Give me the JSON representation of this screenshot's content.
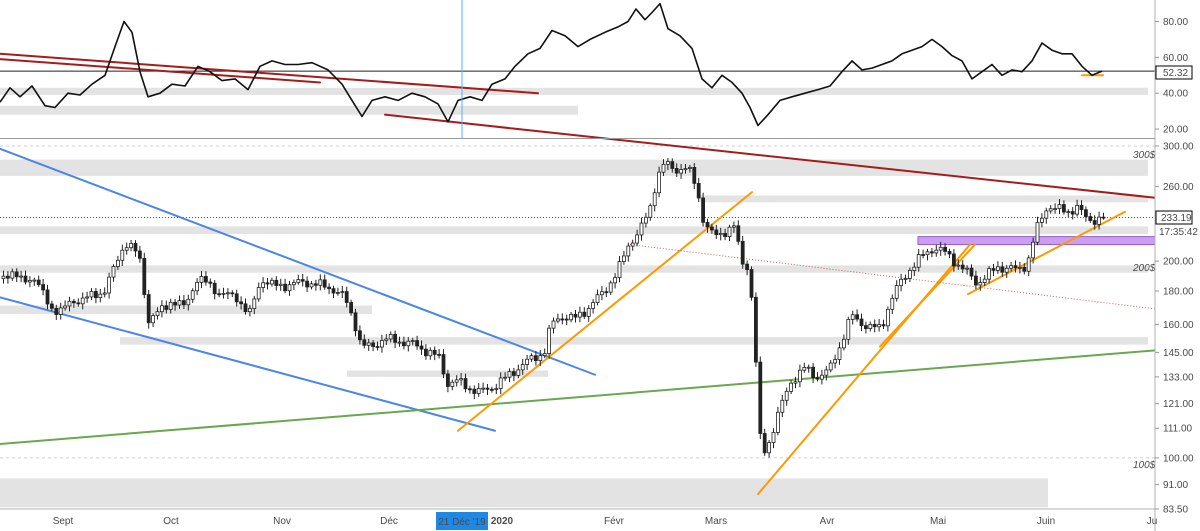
{
  "chart_data": {
    "type": "candlestick",
    "title": "",
    "price_axis": {
      "scale": "log",
      "ticks": [
        "300.00",
        "260.00",
        "233.19",
        "200.00",
        "180.00",
        "160.00",
        "145.00",
        "133.00",
        "121.00",
        "111.00",
        "100.00",
        "91.00",
        "83.50"
      ],
      "range": [
        83.5,
        300
      ]
    },
    "indicator_axis": {
      "ticks": [
        "80.00",
        "60.00",
        "40.00",
        "20.00"
      ],
      "range": [
        15,
        92
      ]
    },
    "x_ticks": [
      "Sept",
      "Oct",
      "Nov",
      "Déc",
      "2020",
      "Févr",
      "Mars",
      "Avr",
      "Mai",
      "Juin",
      "Ju"
    ],
    "cursor_date": "21 Déc '19",
    "last_price": {
      "value": 233.19,
      "label": "233.19",
      "countdown": "17:35:42"
    },
    "indicator_last": {
      "value": 52.32,
      "label": "52.32"
    },
    "level_labels": [
      {
        "text": "300$",
        "value": 300
      },
      {
        "text": "200$",
        "value": 200
      },
      {
        "text": "100$",
        "value": 100
      }
    ],
    "price_series": [
      {
        "x": 0,
        "y": 188
      },
      {
        "x": 12,
        "y": 193
      },
      {
        "x": 22,
        "y": 186
      },
      {
        "x": 35,
        "y": 189
      },
      {
        "x": 50,
        "y": 170
      },
      {
        "x": 62,
        "y": 168
      },
      {
        "x": 75,
        "y": 174
      },
      {
        "x": 90,
        "y": 176
      },
      {
        "x": 105,
        "y": 180
      },
      {
        "x": 115,
        "y": 195
      },
      {
        "x": 126,
        "y": 214
      },
      {
        "x": 135,
        "y": 208
      },
      {
        "x": 142,
        "y": 198
      },
      {
        "x": 148,
        "y": 162
      },
      {
        "x": 160,
        "y": 167
      },
      {
        "x": 172,
        "y": 174
      },
      {
        "x": 185,
        "y": 170
      },
      {
        "x": 198,
        "y": 188
      },
      {
        "x": 210,
        "y": 184
      },
      {
        "x": 222,
        "y": 178
      },
      {
        "x": 238,
        "y": 176
      },
      {
        "x": 250,
        "y": 165
      },
      {
        "x": 262,
        "y": 188
      },
      {
        "x": 275,
        "y": 183
      },
      {
        "x": 290,
        "y": 184
      },
      {
        "x": 305,
        "y": 186
      },
      {
        "x": 318,
        "y": 184
      },
      {
        "x": 332,
        "y": 182
      },
      {
        "x": 345,
        "y": 176
      },
      {
        "x": 355,
        "y": 162
      },
      {
        "x": 362,
        "y": 148
      },
      {
        "x": 372,
        "y": 148
      },
      {
        "x": 385,
        "y": 152
      },
      {
        "x": 400,
        "y": 151
      },
      {
        "x": 415,
        "y": 149
      },
      {
        "x": 430,
        "y": 145
      },
      {
        "x": 440,
        "y": 142
      },
      {
        "x": 448,
        "y": 130
      },
      {
        "x": 458,
        "y": 131
      },
      {
        "x": 470,
        "y": 128
      },
      {
        "x": 480,
        "y": 126
      },
      {
        "x": 492,
        "y": 128
      },
      {
        "x": 505,
        "y": 132
      },
      {
        "x": 518,
        "y": 137
      },
      {
        "x": 530,
        "y": 141
      },
      {
        "x": 545,
        "y": 145
      },
      {
        "x": 552,
        "y": 160
      },
      {
        "x": 562,
        "y": 165
      },
      {
        "x": 575,
        "y": 163
      },
      {
        "x": 590,
        "y": 170
      },
      {
        "x": 605,
        "y": 180
      },
      {
        "x": 618,
        "y": 192
      },
      {
        "x": 630,
        "y": 213
      },
      {
        "x": 640,
        "y": 222
      },
      {
        "x": 650,
        "y": 238
      },
      {
        "x": 658,
        "y": 270
      },
      {
        "x": 665,
        "y": 282
      },
      {
        "x": 675,
        "y": 276
      },
      {
        "x": 688,
        "y": 278
      },
      {
        "x": 697,
        "y": 260
      },
      {
        "x": 705,
        "y": 228
      },
      {
        "x": 715,
        "y": 218
      },
      {
        "x": 725,
        "y": 222
      },
      {
        "x": 735,
        "y": 226
      },
      {
        "x": 742,
        "y": 200
      },
      {
        "x": 750,
        "y": 195
      },
      {
        "x": 758,
        "y": 128
      },
      {
        "x": 762,
        "y": 100
      },
      {
        "x": 770,
        "y": 106
      },
      {
        "x": 780,
        "y": 118
      },
      {
        "x": 792,
        "y": 131
      },
      {
        "x": 805,
        "y": 137
      },
      {
        "x": 818,
        "y": 133
      },
      {
        "x": 830,
        "y": 136
      },
      {
        "x": 842,
        "y": 150
      },
      {
        "x": 852,
        "y": 165
      },
      {
        "x": 862,
        "y": 161
      },
      {
        "x": 872,
        "y": 158
      },
      {
        "x": 882,
        "y": 158
      },
      {
        "x": 890,
        "y": 172
      },
      {
        "x": 898,
        "y": 182
      },
      {
        "x": 910,
        "y": 194
      },
      {
        "x": 922,
        "y": 203
      },
      {
        "x": 935,
        "y": 210
      },
      {
        "x": 948,
        "y": 205
      },
      {
        "x": 958,
        "y": 198
      },
      {
        "x": 968,
        "y": 192
      },
      {
        "x": 978,
        "y": 185
      },
      {
        "x": 988,
        "y": 190
      },
      {
        "x": 998,
        "y": 196
      },
      {
        "x": 1008,
        "y": 195
      },
      {
        "x": 1018,
        "y": 194
      },
      {
        "x": 1028,
        "y": 198
      },
      {
        "x": 1038,
        "y": 225
      },
      {
        "x": 1048,
        "y": 243
      },
      {
        "x": 1058,
        "y": 240
      },
      {
        "x": 1068,
        "y": 238
      },
      {
        "x": 1078,
        "y": 242
      },
      {
        "x": 1088,
        "y": 231
      },
      {
        "x": 1098,
        "y": 232
      },
      {
        "x": 1106,
        "y": 233.19
      }
    ],
    "indicator_series": [
      {
        "x": 0,
        "y": 35
      },
      {
        "x": 10,
        "y": 43
      },
      {
        "x": 20,
        "y": 38
      },
      {
        "x": 32,
        "y": 44
      },
      {
        "x": 45,
        "y": 33
      },
      {
        "x": 55,
        "y": 32
      },
      {
        "x": 68,
        "y": 40
      },
      {
        "x": 80,
        "y": 39
      },
      {
        "x": 92,
        "y": 45
      },
      {
        "x": 105,
        "y": 50
      },
      {
        "x": 115,
        "y": 66
      },
      {
        "x": 124,
        "y": 80
      },
      {
        "x": 132,
        "y": 74
      },
      {
        "x": 140,
        "y": 52
      },
      {
        "x": 148,
        "y": 38
      },
      {
        "x": 160,
        "y": 40
      },
      {
        "x": 172,
        "y": 45
      },
      {
        "x": 185,
        "y": 44
      },
      {
        "x": 198,
        "y": 55
      },
      {
        "x": 210,
        "y": 52
      },
      {
        "x": 222,
        "y": 47
      },
      {
        "x": 235,
        "y": 48
      },
      {
        "x": 248,
        "y": 42
      },
      {
        "x": 260,
        "y": 55
      },
      {
        "x": 272,
        "y": 58
      },
      {
        "x": 285,
        "y": 56
      },
      {
        "x": 298,
        "y": 56
      },
      {
        "x": 312,
        "y": 57
      },
      {
        "x": 328,
        "y": 53
      },
      {
        "x": 342,
        "y": 45
      },
      {
        "x": 352,
        "y": 36
      },
      {
        "x": 362,
        "y": 27
      },
      {
        "x": 372,
        "y": 36
      },
      {
        "x": 385,
        "y": 38
      },
      {
        "x": 398,
        "y": 36
      },
      {
        "x": 412,
        "y": 40
      },
      {
        "x": 425,
        "y": 38
      },
      {
        "x": 438,
        "y": 34
      },
      {
        "x": 448,
        "y": 24
      },
      {
        "x": 458,
        "y": 36
      },
      {
        "x": 470,
        "y": 38
      },
      {
        "x": 482,
        "y": 36
      },
      {
        "x": 492,
        "y": 45
      },
      {
        "x": 505,
        "y": 48
      },
      {
        "x": 515,
        "y": 55
      },
      {
        "x": 528,
        "y": 62
      },
      {
        "x": 540,
        "y": 65
      },
      {
        "x": 552,
        "y": 75
      },
      {
        "x": 565,
        "y": 72
      },
      {
        "x": 578,
        "y": 66
      },
      {
        "x": 590,
        "y": 70
      },
      {
        "x": 605,
        "y": 74
      },
      {
        "x": 618,
        "y": 77
      },
      {
        "x": 628,
        "y": 80
      },
      {
        "x": 636,
        "y": 87
      },
      {
        "x": 645,
        "y": 81
      },
      {
        "x": 652,
        "y": 85
      },
      {
        "x": 660,
        "y": 90
      },
      {
        "x": 668,
        "y": 76
      },
      {
        "x": 680,
        "y": 72
      },
      {
        "x": 692,
        "y": 65
      },
      {
        "x": 702,
        "y": 48
      },
      {
        "x": 712,
        "y": 43
      },
      {
        "x": 722,
        "y": 50
      },
      {
        "x": 732,
        "y": 46
      },
      {
        "x": 742,
        "y": 40
      },
      {
        "x": 750,
        "y": 32
      },
      {
        "x": 758,
        "y": 22
      },
      {
        "x": 768,
        "y": 28
      },
      {
        "x": 780,
        "y": 36
      },
      {
        "x": 792,
        "y": 38
      },
      {
        "x": 805,
        "y": 40
      },
      {
        "x": 818,
        "y": 42
      },
      {
        "x": 830,
        "y": 44
      },
      {
        "x": 842,
        "y": 52
      },
      {
        "x": 852,
        "y": 58
      },
      {
        "x": 862,
        "y": 53
      },
      {
        "x": 872,
        "y": 54
      },
      {
        "x": 882,
        "y": 56
      },
      {
        "x": 892,
        "y": 58
      },
      {
        "x": 902,
        "y": 62
      },
      {
        "x": 912,
        "y": 64
      },
      {
        "x": 922,
        "y": 66
      },
      {
        "x": 932,
        "y": 70
      },
      {
        "x": 942,
        "y": 66
      },
      {
        "x": 952,
        "y": 61
      },
      {
        "x": 962,
        "y": 58
      },
      {
        "x": 972,
        "y": 48
      },
      {
        "x": 982,
        "y": 52
      },
      {
        "x": 992,
        "y": 56
      },
      {
        "x": 1002,
        "y": 50
      },
      {
        "x": 1012,
        "y": 53
      },
      {
        "x": 1022,
        "y": 52
      },
      {
        "x": 1032,
        "y": 58
      },
      {
        "x": 1042,
        "y": 68
      },
      {
        "x": 1052,
        "y": 64
      },
      {
        "x": 1062,
        "y": 62
      },
      {
        "x": 1072,
        "y": 62
      },
      {
        "x": 1082,
        "y": 55
      },
      {
        "x": 1092,
        "y": 50
      },
      {
        "x": 1102,
        "y": 52.32
      }
    ],
    "zones": [
      {
        "axis": "price",
        "low": 270,
        "high": 286,
        "x0": 0,
        "x1": 1148
      },
      {
        "axis": "price",
        "low": 246,
        "high": 252,
        "x0": 700,
        "x1": 1148
      },
      {
        "axis": "price",
        "low": 220,
        "high": 226,
        "x0": 0,
        "x1": 1148
      },
      {
        "axis": "price",
        "low": 192,
        "high": 197,
        "x0": 0,
        "x1": 1148
      },
      {
        "axis": "price",
        "low": 166,
        "high": 171,
        "x0": 0,
        "x1": 372
      },
      {
        "axis": "price",
        "low": 149,
        "high": 153,
        "x0": 120,
        "x1": 1148
      },
      {
        "axis": "price",
        "low": 133,
        "high": 136,
        "x0": 347,
        "x1": 548
      },
      {
        "axis": "price",
        "low": 84,
        "high": 93,
        "x0": 0,
        "x1": 1048
      },
      {
        "axis": "indicator",
        "low": 28,
        "high": 33,
        "x0": 0,
        "x1": 578
      },
      {
        "axis": "indicator",
        "low": 39,
        "high": 43,
        "x0": 0,
        "x1": 1148
      }
    ],
    "highlight_zone": {
      "low": 212,
      "high": 218,
      "x0": 918,
      "x1": 1155,
      "color": "#c9a0f0"
    },
    "trendlines": [
      {
        "axis": "price",
        "color": "#4a86e8",
        "x0": 0,
        "y0": 297,
        "x1": 595,
        "y1": 134
      },
      {
        "axis": "price",
        "color": "#4a86e8",
        "x0": 0,
        "y0": 176,
        "x1": 495,
        "y1": 110
      },
      {
        "axis": "price",
        "color": "#6aa84f",
        "x0": 0,
        "y0": 105,
        "x1": 1155,
        "y1": 146
      },
      {
        "axis": "price",
        "color": "#a61c1c",
        "x0": 385,
        "y0": 335,
        "x1": 1155,
        "y1": 250
      },
      {
        "axis": "price",
        "color": "#ff9900",
        "x0": 458,
        "y0": 110,
        "x1": 752,
        "y1": 255
      },
      {
        "axis": "price",
        "color": "#ff9900",
        "x0": 758,
        "y0": 88,
        "x1": 970,
        "y1": 212
      },
      {
        "axis": "price",
        "color": "#ff9900",
        "x0": 880,
        "y0": 148,
        "x1": 975,
        "y1": 212
      },
      {
        "axis": "price",
        "color": "#ff9900",
        "x0": 968,
        "y0": 178,
        "x1": 1125,
        "y1": 238
      },
      {
        "axis": "indicator",
        "color": "#a61c1c",
        "x0": 0,
        "y0": 62,
        "x1": 538,
        "y1": 40
      },
      {
        "axis": "indicator",
        "color": "#a61c1c",
        "x0": 0,
        "y0": 59,
        "x1": 320,
        "y1": 46
      },
      {
        "axis": "indicator",
        "color": "#ff9900",
        "x0": 1082,
        "y0": 50,
        "x1": 1103,
        "y1": 50
      }
    ],
    "dotted_lines": [
      {
        "axis": "price",
        "color": "#c06060",
        "x0": 630,
        "y0": 212,
        "x1": 1155,
        "y1": 169
      }
    ]
  }
}
